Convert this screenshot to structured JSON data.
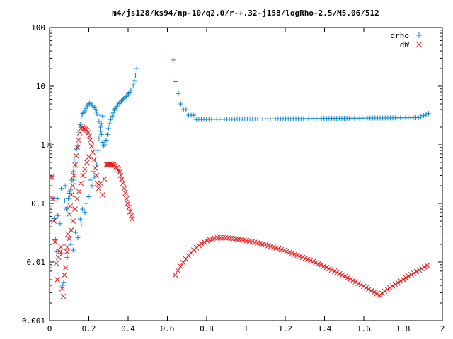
{
  "chart_data": {
    "type": "scatter",
    "title": "m4/js128/ks94/np-10/q2.0/r-+.32-j158/logRho-2.5/M5.06/512",
    "xlabel": "",
    "ylabel": "",
    "xlim": [
      0,
      2
    ],
    "ylim": [
      0.001,
      100
    ],
    "yscale": "log",
    "grid": false,
    "legend_position": "top-right",
    "x_ticks": [
      {
        "value": 0,
        "label": "0"
      },
      {
        "value": 0.2,
        "label": "0.2"
      },
      {
        "value": 0.4,
        "label": "0.4"
      },
      {
        "value": 0.6,
        "label": "0.6"
      },
      {
        "value": 0.8,
        "label": "0.8"
      },
      {
        "value": 1,
        "label": "1"
      },
      {
        "value": 1.2,
        "label": "1.2"
      },
      {
        "value": 1.4,
        "label": "1.4"
      },
      {
        "value": 1.6,
        "label": "1.6"
      },
      {
        "value": 1.8,
        "label": "1.8"
      },
      {
        "value": 2,
        "label": "2"
      }
    ],
    "y_ticks": [
      {
        "value": 0.001,
        "label": "0.001"
      },
      {
        "value": 0.01,
        "label": "0.01"
      },
      {
        "value": 0.1,
        "label": "0.1"
      },
      {
        "value": 1,
        "label": "1"
      },
      {
        "value": 10,
        "label": "10"
      },
      {
        "value": 100,
        "label": "100"
      }
    ],
    "series": [
      {
        "name": "drho",
        "marker": "plus",
        "color": "#0e86d4",
        "points": [
          [
            0.0,
            1.0
          ],
          [
            0.01,
            0.29
          ],
          [
            0.018,
            0.12
          ],
          [
            0.024,
            0.055
          ],
          [
            0.03,
            0.024
          ],
          [
            0.036,
            0.015
          ],
          [
            0.042,
            0.062
          ],
          [
            0.048,
            0.063
          ],
          [
            0.054,
            0.045
          ],
          [
            0.06,
            0.014
          ],
          [
            0.066,
            0.004
          ],
          [
            0.072,
            0.0045
          ],
          [
            0.078,
            0.11
          ],
          [
            0.084,
            0.08
          ],
          [
            0.09,
            0.085
          ],
          [
            0.096,
            0.12
          ],
          [
            0.102,
            0.15
          ],
          [
            0.108,
            0.17
          ],
          [
            0.114,
            0.25
          ],
          [
            0.12,
            0.35
          ],
          [
            0.126,
            0.55
          ],
          [
            0.132,
            0.45
          ],
          [
            0.138,
            0.85
          ],
          [
            0.144,
            0.95
          ],
          [
            0.15,
            1.6
          ],
          [
            0.156,
            2.2
          ],
          [
            0.162,
            3.0
          ],
          [
            0.168,
            3.4
          ],
          [
            0.174,
            3.5
          ],
          [
            0.18,
            3.8
          ],
          [
            0.186,
            4.2
          ],
          [
            0.192,
            4.6
          ],
          [
            0.198,
            5.0
          ],
          [
            0.204,
            5.1
          ],
          [
            0.21,
            5.0
          ],
          [
            0.216,
            4.8
          ],
          [
            0.222,
            4.6
          ],
          [
            0.228,
            4.3
          ],
          [
            0.234,
            4.0
          ],
          [
            0.24,
            3.6
          ],
          [
            0.246,
            3.2
          ],
          [
            0.252,
            2.5
          ],
          [
            0.258,
            2.0
          ],
          [
            0.264,
            1.5
          ],
          [
            0.27,
            1.1
          ],
          [
            0.276,
            0.95
          ],
          [
            0.282,
            1.0
          ],
          [
            0.288,
            1.2
          ],
          [
            0.294,
            1.5
          ],
          [
            0.3,
            1.9
          ],
          [
            0.306,
            2.3
          ],
          [
            0.312,
            2.7
          ],
          [
            0.318,
            3.1
          ],
          [
            0.324,
            3.5
          ],
          [
            0.33,
            3.9
          ],
          [
            0.336,
            4.2
          ],
          [
            0.342,
            4.5
          ],
          [
            0.348,
            4.8
          ],
          [
            0.354,
            5.1
          ],
          [
            0.36,
            5.3
          ],
          [
            0.366,
            5.6
          ],
          [
            0.372,
            5.9
          ],
          [
            0.378,
            6.1
          ],
          [
            0.384,
            6.4
          ],
          [
            0.39,
            6.7
          ],
          [
            0.396,
            7.0
          ],
          [
            0.402,
            7.4
          ],
          [
            0.408,
            7.9
          ],
          [
            0.414,
            8.5
          ],
          [
            0.42,
            9.3
          ],
          [
            0.426,
            10.5
          ],
          [
            0.432,
            12.5
          ],
          [
            0.438,
            15.0
          ],
          [
            0.444,
            20.0
          ],
          [
            0.09,
            0.012
          ],
          [
            0.108,
            0.02
          ],
          [
            0.12,
            0.016
          ],
          [
            0.132,
            0.032
          ],
          [
            0.144,
            0.026
          ],
          [
            0.156,
            0.054
          ],
          [
            0.162,
            0.043
          ],
          [
            0.168,
            0.08
          ],
          [
            0.18,
            0.07
          ],
          [
            0.186,
            0.1
          ],
          [
            0.198,
            0.13
          ],
          [
            0.21,
            0.25
          ],
          [
            0.216,
            0.2
          ],
          [
            0.222,
            0.35
          ],
          [
            0.228,
            0.28
          ],
          [
            0.234,
            0.55
          ],
          [
            0.24,
            0.45
          ],
          [
            0.246,
            0.8
          ],
          [
            0.252,
            1.3
          ],
          [
            0.258,
            1.7
          ],
          [
            0.264,
            2.3
          ],
          [
            0.27,
            3.1
          ],
          [
            0.04,
            0.12
          ],
          [
            0.06,
            0.18
          ],
          [
            0.08,
            0.2
          ],
          [
            0.1,
            0.16
          ],
          [
            0.12,
            0.25
          ]
        ]
      },
      {
        "name": "dW",
        "marker": "cross",
        "color": "#e41a1c",
        "points": [
          [
            0.0,
            1.0
          ],
          [
            0.01,
            0.28
          ],
          [
            0.016,
            0.12
          ],
          [
            0.022,
            0.05
          ],
          [
            0.028,
            0.022
          ],
          [
            0.034,
            0.0095
          ],
          [
            0.04,
            0.005
          ],
          [
            0.046,
            0.012
          ],
          [
            0.052,
            0.015
          ],
          [
            0.058,
            0.018
          ],
          [
            0.064,
            0.0035
          ],
          [
            0.07,
            0.0026
          ],
          [
            0.076,
            0.006
          ],
          [
            0.082,
            0.008
          ],
          [
            0.088,
            0.015
          ],
          [
            0.094,
            0.03
          ],
          [
            0.1,
            0.065
          ],
          [
            0.106,
            0.09
          ],
          [
            0.112,
            0.14
          ],
          [
            0.118,
            0.2
          ],
          [
            0.124,
            0.3
          ],
          [
            0.13,
            0.45
          ],
          [
            0.136,
            0.65
          ],
          [
            0.142,
            0.9
          ],
          [
            0.148,
            1.2
          ],
          [
            0.154,
            1.6
          ],
          [
            0.16,
            1.9
          ],
          [
            0.166,
            2.0
          ],
          [
            0.172,
            1.95
          ],
          [
            0.178,
            1.9
          ],
          [
            0.184,
            1.85
          ],
          [
            0.19,
            1.75
          ],
          [
            0.196,
            1.6
          ],
          [
            0.202,
            1.4
          ],
          [
            0.208,
            1.2
          ],
          [
            0.214,
            0.95
          ],
          [
            0.22,
            0.75
          ],
          [
            0.226,
            0.55
          ],
          [
            0.232,
            0.4
          ],
          [
            0.238,
            0.3
          ],
          [
            0.244,
            0.22
          ],
          [
            0.25,
            0.18
          ],
          [
            0.29,
            0.46
          ],
          [
            0.296,
            0.46
          ],
          [
            0.302,
            0.46
          ],
          [
            0.308,
            0.47
          ],
          [
            0.314,
            0.46
          ],
          [
            0.32,
            0.46
          ],
          [
            0.326,
            0.45
          ],
          [
            0.332,
            0.44
          ],
          [
            0.338,
            0.42
          ],
          [
            0.344,
            0.4
          ],
          [
            0.35,
            0.37
          ],
          [
            0.356,
            0.34
          ],
          [
            0.362,
            0.3
          ],
          [
            0.368,
            0.26
          ],
          [
            0.374,
            0.22
          ],
          [
            0.38,
            0.18
          ],
          [
            0.386,
            0.15
          ],
          [
            0.392,
            0.12
          ],
          [
            0.398,
            0.1
          ],
          [
            0.404,
            0.085
          ],
          [
            0.41,
            0.072
          ],
          [
            0.416,
            0.062
          ],
          [
            0.42,
            0.054
          ],
          [
            0.09,
            0.018
          ],
          [
            0.1,
            0.025
          ],
          [
            0.11,
            0.035
          ],
          [
            0.12,
            0.05
          ],
          [
            0.13,
            0.08
          ],
          [
            0.14,
            0.12
          ],
          [
            0.15,
            0.16
          ],
          [
            0.16,
            0.22
          ],
          [
            0.17,
            0.3
          ],
          [
            0.18,
            0.38
          ],
          [
            0.19,
            0.5
          ],
          [
            0.2,
            0.62
          ],
          [
            0.26,
            0.22
          ],
          [
            0.27,
            0.14
          ],
          [
            0.28,
            0.26
          ]
        ]
      }
    ]
  }
}
